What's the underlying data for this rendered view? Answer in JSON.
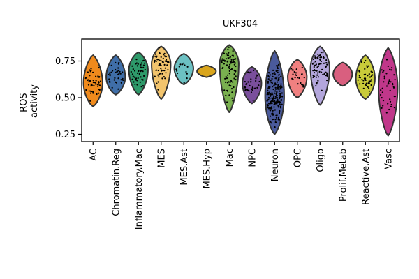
{
  "chart_data": {
    "type": "violin",
    "title": "UKF304",
    "ylabel_lines": [
      "ROS",
      "activity"
    ],
    "xlabel": "",
    "ylim": [
      0.2,
      0.9
    ],
    "yticks": [
      0.25,
      0.5,
      0.75
    ],
    "ytick_labels": [
      "0.25",
      "0.50",
      "0.75"
    ],
    "grid": false,
    "series": [
      {
        "name": "AC",
        "color": "#f08a1c",
        "min": 0.44,
        "max": 0.79,
        "median": 0.6,
        "points": 55
      },
      {
        "name": "Chromatin.Reg",
        "color": "#3f6ea8",
        "min": 0.52,
        "max": 0.79,
        "median": 0.64,
        "points": 35
      },
      {
        "name": "Inflammatory.Mac",
        "color": "#2e9a6a",
        "min": 0.52,
        "max": 0.81,
        "median": 0.69,
        "points": 45
      },
      {
        "name": "MES",
        "color": "#f2c46d",
        "min": 0.49,
        "max": 0.85,
        "median": 0.73,
        "points": 60
      },
      {
        "name": "MES.Ast",
        "color": "#6cc1c3",
        "min": 0.59,
        "max": 0.8,
        "median": 0.7,
        "points": 14
      },
      {
        "name": "MES.Hyp",
        "color": "#d9a51c",
        "min": 0.64,
        "max": 0.72,
        "median": 0.68,
        "points": 0
      },
      {
        "name": "Mac",
        "color": "#7ab050",
        "min": 0.4,
        "max": 0.86,
        "median": 0.73,
        "points": 90
      },
      {
        "name": "NPC",
        "color": "#7a4f9c",
        "min": 0.46,
        "max": 0.71,
        "median": 0.6,
        "points": 35
      },
      {
        "name": "Neuron",
        "color": "#4a5a9c",
        "min": 0.25,
        "max": 0.82,
        "median": 0.51,
        "points": 200
      },
      {
        "name": "OPC",
        "color": "#f08080",
        "min": 0.5,
        "max": 0.76,
        "median": 0.64,
        "points": 25
      },
      {
        "name": "Oligo",
        "color": "#b3a6dc",
        "min": 0.45,
        "max": 0.85,
        "median": 0.7,
        "points": 70
      },
      {
        "name": "Prolif.Metab",
        "color": "#d95f7f",
        "min": 0.58,
        "max": 0.74,
        "median": 0.66,
        "points": 0
      },
      {
        "name": "Reactive.Ast",
        "color": "#c9cb3a",
        "min": 0.49,
        "max": 0.79,
        "median": 0.63,
        "points": 45
      },
      {
        "name": "Vasc",
        "color": "#c0378a",
        "min": 0.24,
        "max": 0.84,
        "median": 0.57,
        "points": 45
      }
    ]
  }
}
